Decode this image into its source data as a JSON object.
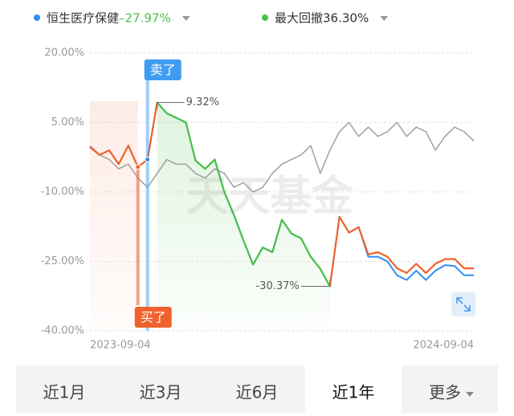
{
  "chart_data": {
    "type": "line",
    "legend": [
      {
        "name": "恒生医疗保健",
        "value_label": "–27.97%",
        "color": "#2f8ff5"
      },
      {
        "name": "最大回撤",
        "value_label": "36.30%",
        "color": "#4cbf4a"
      }
    ],
    "x": [
      "2023-09-04",
      null,
      null,
      null,
      null,
      null,
      null,
      null,
      null,
      null,
      null,
      null,
      null,
      null,
      null,
      null,
      null,
      null,
      null,
      null,
      null,
      null,
      null,
      null,
      null,
      null,
      null,
      null,
      null,
      null,
      null,
      null,
      null,
      null,
      null,
      null,
      null,
      null,
      null,
      null,
      "2024-09-04"
    ],
    "series": [
      {
        "color": "#a0a0a0",
        "values": [
          0,
          -2,
          -3,
          -5,
          -4,
          -7,
          -9,
          -6,
          -3,
          -4,
          -4,
          -6,
          -7,
          -5,
          -6,
          -9,
          -8,
          -10,
          -9,
          -6,
          -4,
          -3,
          -2,
          0,
          -6,
          -1,
          3,
          5,
          2,
          4,
          2,
          3,
          5,
          2,
          4,
          3,
          -1,
          2,
          4,
          3,
          1
        ]
      },
      {
        "name": "恒生医疗保健",
        "color": "#2f8ff5",
        "values": [
          -0.3,
          -2,
          -1,
          -4,
          0,
          -4.6,
          -3,
          9.32,
          7,
          6,
          5,
          -3.2,
          -5,
          -3,
          -10,
          -15,
          -20.5,
          -25.7,
          -22,
          -23,
          -16,
          -19,
          -20,
          -24,
          -26.6,
          -30.37,
          -15.4,
          -18.8,
          -17.6,
          -24,
          -24,
          -25,
          -28,
          -29,
          -27,
          -29,
          -27,
          -25.8,
          -26,
          -28,
          -27.97
        ]
      },
      {
        "color": "#f0622d",
        "values": [
          -0.3,
          -2,
          -1,
          -4,
          0,
          -4.6,
          -3,
          9.32,
          null,
          null,
          null,
          null,
          null,
          null,
          null,
          null,
          null,
          null,
          null,
          null,
          null,
          null,
          null,
          null,
          null,
          -30.37,
          -15.4,
          -18.8,
          -17.6,
          -23.5,
          -23,
          -24,
          -26.5,
          -27.5,
          -25.5,
          -27.5,
          -25.5,
          -24.5,
          -24.5,
          -26.5,
          -26.5
        ]
      },
      {
        "color": "#4cbf4a",
        "values": [
          null,
          null,
          null,
          null,
          null,
          null,
          null,
          9.32,
          7,
          6,
          5,
          -3.2,
          -5,
          -3,
          -10,
          -15,
          -20.5,
          -25.7,
          -22,
          -23,
          -16,
          -19,
          -20,
          -24,
          -26.6,
          -30.37,
          null,
          null,
          null,
          null,
          null,
          null,
          null,
          null,
          null,
          null,
          null,
          null,
          null,
          null,
          null
        ]
      }
    ],
    "ylim": [
      -40,
      20
    ],
    "yticks": [
      {
        "value": 20,
        "label": "20.00%"
      },
      {
        "value": 5,
        "label": "5.00%"
      },
      {
        "value": -10,
        "label": "-10.00%"
      },
      {
        "value": -25,
        "label": "-25.00%"
      },
      {
        "value": -40,
        "label": "-40.00%"
      }
    ],
    "grid": true,
    "watermark": "天天基金",
    "annotations": {
      "sell": "卖了",
      "buy": "买了",
      "peak": {
        "value": 9.32,
        "label": "9.32%"
      },
      "trough": {
        "value": -30.37,
        "label": "-30.37%"
      }
    },
    "tabs": [
      {
        "label": "近1月"
      },
      {
        "label": "近3月"
      },
      {
        "label": "近6月"
      },
      {
        "label": "近1年",
        "selected": true
      },
      {
        "label": "更多"
      }
    ]
  }
}
